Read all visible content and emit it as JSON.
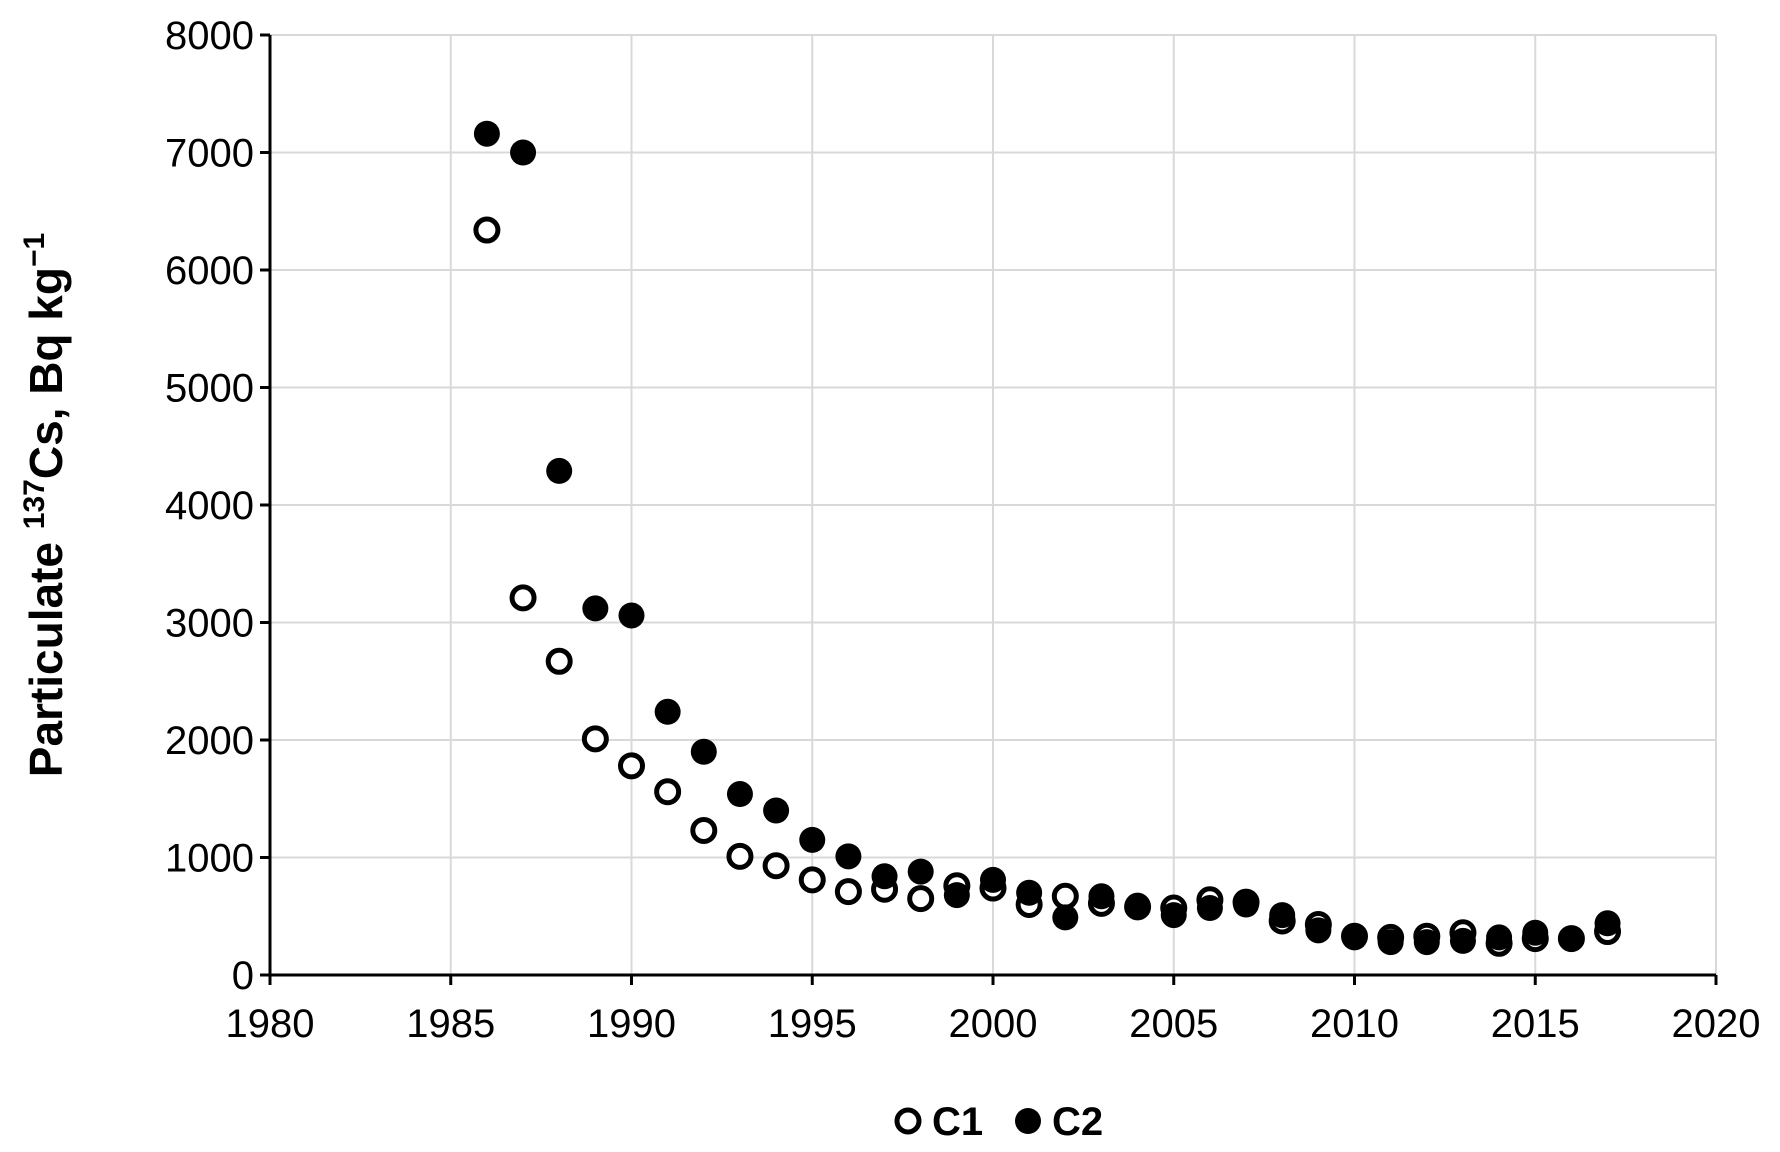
{
  "chart_data": {
    "type": "scatter",
    "title": "",
    "xlabel": "",
    "ylabel": {
      "prefix": "Particulate ",
      "superscript": "137",
      "main": "Cs, Bq kg",
      "superscript_end": "−1"
    },
    "xlim": [
      1980,
      2020
    ],
    "ylim": [
      0,
      8000
    ],
    "xticks": [
      1980,
      1985,
      1990,
      1995,
      2000,
      2005,
      2010,
      2015,
      2020
    ],
    "yticks": [
      0,
      1000,
      2000,
      3000,
      4000,
      5000,
      6000,
      7000,
      8000
    ],
    "grid": true,
    "legend_position": "bottom",
    "series": [
      {
        "name": "C1",
        "marker": "open-circle",
        "color": "#000000",
        "points": [
          [
            1986,
            6340
          ],
          [
            1987,
            3210
          ],
          [
            1988,
            2670
          ],
          [
            1989,
            2010
          ],
          [
            1990,
            1780
          ],
          [
            1991,
            1560
          ],
          [
            1992,
            1230
          ],
          [
            1993,
            1010
          ],
          [
            1994,
            930
          ],
          [
            1995,
            810
          ],
          [
            1996,
            710
          ],
          [
            1997,
            730
          ],
          [
            1998,
            650
          ],
          [
            1999,
            760
          ],
          [
            2000,
            740
          ],
          [
            2001,
            600
          ],
          [
            2002,
            670
          ],
          [
            2003,
            610
          ],
          [
            2004,
            580
          ],
          [
            2005,
            570
          ],
          [
            2006,
            640
          ],
          [
            2007,
            620
          ],
          [
            2008,
            460
          ],
          [
            2009,
            430
          ],
          [
            2010,
            330
          ],
          [
            2011,
            320
          ],
          [
            2012,
            330
          ],
          [
            2013,
            360
          ],
          [
            2014,
            270
          ],
          [
            2015,
            310
          ],
          [
            2016,
            310
          ],
          [
            2017,
            370
          ]
        ]
      },
      {
        "name": "C2",
        "marker": "filled-circle",
        "color": "#000000",
        "points": [
          [
            1986,
            7160
          ],
          [
            1987,
            7000
          ],
          [
            1988,
            4290
          ],
          [
            1989,
            3120
          ],
          [
            1990,
            3060
          ],
          [
            1991,
            2240
          ],
          [
            1992,
            1900
          ],
          [
            1993,
            1540
          ],
          [
            1994,
            1400
          ],
          [
            1995,
            1150
          ],
          [
            1996,
            1010
          ],
          [
            1997,
            840
          ],
          [
            1998,
            880
          ],
          [
            1999,
            680
          ],
          [
            2000,
            810
          ],
          [
            2001,
            700
          ],
          [
            2002,
            490
          ],
          [
            2003,
            670
          ],
          [
            2004,
            590
          ],
          [
            2005,
            510
          ],
          [
            2006,
            570
          ],
          [
            2007,
            600
          ],
          [
            2008,
            510
          ],
          [
            2009,
            380
          ],
          [
            2010,
            320
          ],
          [
            2011,
            280
          ],
          [
            2012,
            280
          ],
          [
            2013,
            290
          ],
          [
            2014,
            320
          ],
          [
            2015,
            360
          ],
          [
            2016,
            310
          ],
          [
            2017,
            440
          ]
        ]
      }
    ]
  }
}
